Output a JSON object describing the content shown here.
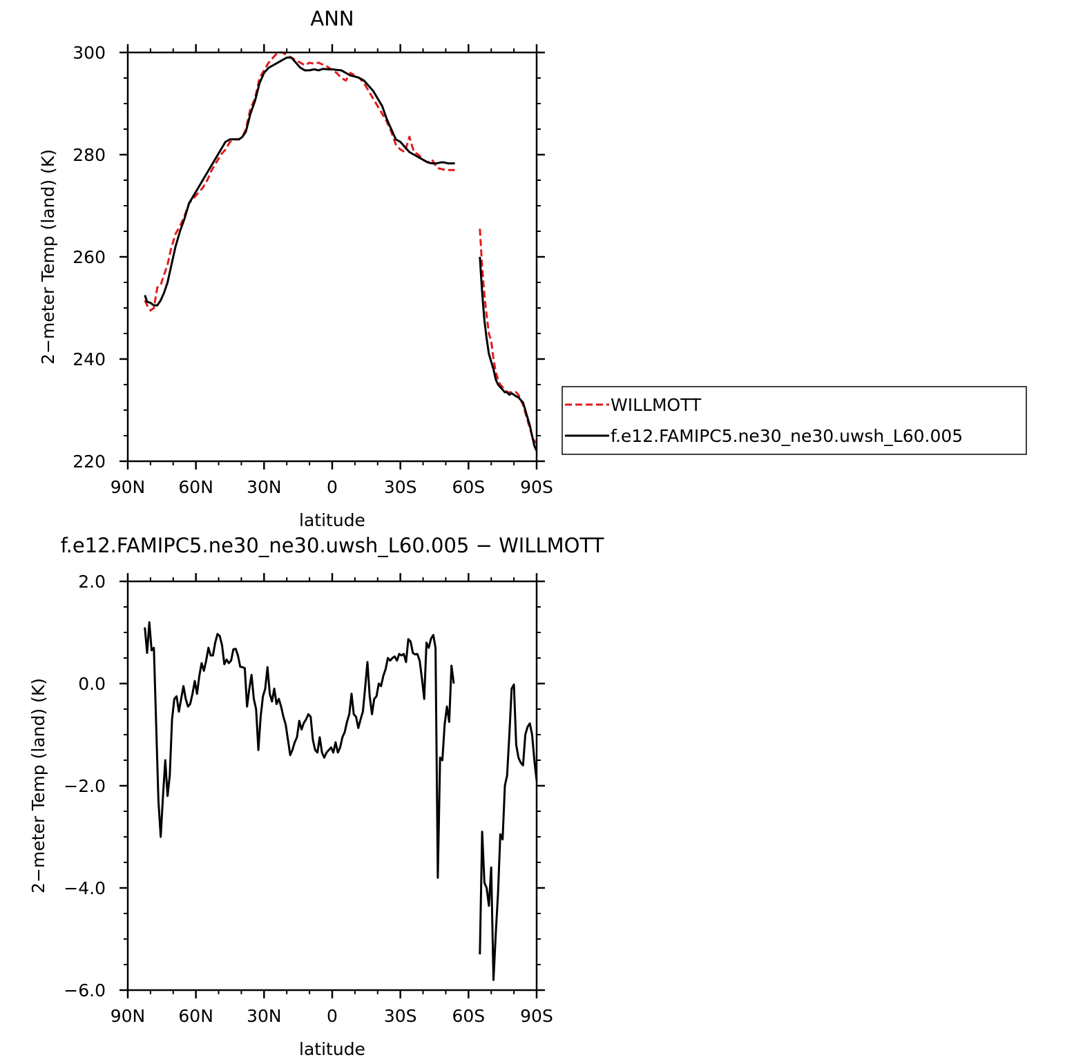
{
  "chart_data": [
    {
      "type": "line",
      "title": "ANN",
      "xlabel": "latitude",
      "ylabel": "2−meter Temp (land) (K)",
      "xlim": [
        90,
        -90
      ],
      "ylim": [
        220,
        300
      ],
      "x_ticks": [
        {
          "value": 90,
          "label": "90N"
        },
        {
          "value": 60,
          "label": "60N"
        },
        {
          "value": 30,
          "label": "30N"
        },
        {
          "value": 0,
          "label": "0"
        },
        {
          "value": -30,
          "label": "30S"
        },
        {
          "value": -60,
          "label": "60S"
        },
        {
          "value": -90,
          "label": "90S"
        }
      ],
      "y_ticks": [
        {
          "value": 300,
          "label": "300"
        },
        {
          "value": 280,
          "label": "280"
        },
        {
          "value": 260,
          "label": "260"
        },
        {
          "value": 240,
          "label": "240"
        },
        {
          "value": 220,
          "label": "220"
        }
      ],
      "legend": {
        "position": "right"
      },
      "series": [
        {
          "name": "WILLMOTT",
          "color": "#e31a1c",
          "dash": "dashed",
          "segments": [
            {
              "x": [
                82.5,
                81.5,
                80,
                78.5,
                77,
                75.5,
                74,
                72.5,
                71,
                69,
                67,
                65,
                63,
                61,
                59,
                57,
                55,
                53,
                51,
                49,
                47,
                45,
                43,
                41,
                39.5,
                38,
                36,
                34,
                32,
                30,
                28,
                26,
                24,
                22,
                20,
                18,
                16,
                14,
                12,
                10,
                8,
                6,
                4,
                2,
                0,
                -2,
                -4,
                -6,
                -8,
                -10,
                -12,
                -14,
                -16,
                -18,
                -20,
                -22,
                -24,
                -26,
                -28,
                -30,
                -32,
                -34,
                -36,
                -38,
                -40,
                -42,
                -44,
                -46,
                -47,
                -48,
                -49,
                -50,
                -51,
                -52,
                -53,
                -54
              ],
              "y": [
                251.5,
                250.5,
                249.5,
                250,
                254,
                254.5,
                256.5,
                258.5,
                261.5,
                264.5,
                266,
                268,
                270.5,
                271.5,
                272.5,
                273.5,
                275,
                277,
                278.5,
                280,
                281,
                282.5,
                283,
                283,
                283.5,
                285,
                289,
                291,
                295,
                296.5,
                298,
                299,
                300,
                300,
                299.5,
                299,
                298.5,
                298,
                297.5,
                298,
                297.8,
                298,
                297.6,
                297.2,
                296.5,
                296,
                295,
                294.5,
                296,
                295.5,
                295,
                294,
                292.5,
                291,
                289.5,
                288,
                286.5,
                284.5,
                282,
                281,
                280.5,
                283.5,
                280.5,
                280,
                279,
                278.5,
                279,
                277.5,
                277.3,
                277.2,
                277.1,
                277,
                277,
                277,
                277,
                277
              ]
            },
            {
              "x": [
                -65,
                -66,
                -67,
                -68,
                -69,
                -70,
                -71,
                -72,
                -73,
                -74,
                -75,
                -76,
                -77,
                -78,
                -79,
                -80,
                -81,
                -82,
                -83,
                -84,
                -85,
                -86,
                -87,
                -88,
                -89,
                -90
              ],
              "y": [
                265.5,
                258,
                252.5,
                248.5,
                245,
                243.5,
                240,
                237.5,
                236,
                235,
                234.5,
                234,
                233.5,
                233.5,
                233.5,
                233.5,
                233.5,
                233,
                232,
                231,
                229.5,
                228,
                226.5,
                225,
                224,
                223.5
              ]
            }
          ]
        },
        {
          "name": "f.e12.FAMIPC5.ne30_ne30.uwsh_L60.005",
          "color": "#000000",
          "dash": "solid",
          "segments": [
            {
              "x": [
                82.5,
                81.5,
                80,
                78.5,
                77,
                75.5,
                74,
                72.5,
                71,
                69,
                67,
                65,
                63,
                61,
                59,
                57,
                55,
                53,
                51,
                49,
                47,
                45,
                43,
                41,
                39.5,
                38,
                36,
                34,
                32,
                30,
                28,
                26,
                24,
                22,
                20,
                18,
                16,
                14,
                12,
                10,
                8,
                6,
                4,
                2,
                0,
                -2,
                -4,
                -6,
                -8,
                -10,
                -12,
                -14,
                -16,
                -18,
                -20,
                -22,
                -24,
                -26,
                -28,
                -30,
                -32,
                -34,
                -36,
                -38,
                -40,
                -42,
                -44,
                -46,
                -47,
                -48,
                -49,
                -50,
                -51,
                -52,
                -53,
                -54
              ],
              "y": [
                252.5,
                251.2,
                251,
                250.5,
                250.5,
                251.5,
                253,
                255,
                258,
                262,
                265,
                267.5,
                270.5,
                272,
                273.5,
                275,
                276.5,
                278,
                279.5,
                281,
                282.5,
                283,
                283,
                283,
                283.5,
                284.5,
                288,
                290.5,
                294,
                296,
                297,
                297.5,
                298,
                298.5,
                299,
                299,
                298,
                297,
                296.5,
                296.5,
                296.7,
                296.5,
                296.8,
                296.7,
                296.7,
                296.6,
                296.5,
                296,
                295.5,
                295.3,
                295,
                294.5,
                293.5,
                292.5,
                291,
                289.5,
                287,
                285,
                283,
                282.5,
                281.5,
                280.5,
                280,
                279.5,
                279,
                278.5,
                278.3,
                278.3,
                278.4,
                278.5,
                278.5,
                278.4,
                278.3,
                278.3,
                278.3,
                278.3
              ]
            },
            {
              "x": [
                -65,
                -66,
                -67,
                -68,
                -69,
                -70,
                -71,
                -72,
                -73,
                -74,
                -75,
                -76,
                -77,
                -78,
                -79,
                -80,
                -81,
                -82,
                -83,
                -84,
                -85,
                -86,
                -87,
                -88,
                -89,
                -90
              ],
              "y": [
                260,
                253,
                247.5,
                244,
                241,
                239.5,
                238,
                236,
                235,
                234.5,
                234,
                233.5,
                233.5,
                233,
                233.3,
                233,
                232.7,
                232.5,
                232,
                231.5,
                230,
                228.5,
                227,
                225,
                223,
                222
              ]
            }
          ]
        }
      ]
    },
    {
      "type": "line",
      "title": "f.e12.FAMIPC5.ne30_ne30.uwsh_L60.005 − WILLMOTT",
      "xlabel": "latitude",
      "ylabel": "2−meter Temp (land) (K)",
      "xlim": [
        90,
        -90
      ],
      "ylim": [
        -6,
        2
      ],
      "x_ticks": [
        {
          "value": 90,
          "label": "90N"
        },
        {
          "value": 60,
          "label": "60N"
        },
        {
          "value": 30,
          "label": "30N"
        },
        {
          "value": 0,
          "label": "0"
        },
        {
          "value": -30,
          "label": "30S"
        },
        {
          "value": -60,
          "label": "60S"
        },
        {
          "value": -90,
          "label": "90S"
        }
      ],
      "y_ticks": [
        {
          "value": 2,
          "label": "2.0"
        },
        {
          "value": 0,
          "label": "0.0"
        },
        {
          "value": -2,
          "label": "−2.0"
        },
        {
          "value": -4,
          "label": "−4.0"
        },
        {
          "value": -6,
          "label": "−6.0"
        }
      ],
      "series": [
        {
          "color": "#000000",
          "dash": "solid",
          "segments": [
            {
              "x": [
                82.5,
                81.5,
                80.5,
                79.5,
                78.5,
                77.5,
                76.5,
                75.5,
                74.5,
                73.5,
                72.5,
                71.5,
                70.5,
                69.5,
                68.5,
                67.5,
                66.5,
                65.5,
                64.5,
                63.5,
                62.5,
                61.5,
                60.5,
                59.5,
                58.5,
                57.5,
                56.5,
                55.5,
                54.5,
                53.5,
                52.5,
                51.5,
                50.5,
                49.5,
                48.5,
                47.5,
                46.5,
                45.5,
                44.5,
                43.5,
                42.5,
                41.5,
                40.5,
                39.5,
                38.5,
                37.5,
                36.5,
                35.5,
                34.5,
                33.5,
                32.5,
                31.5,
                30.5,
                29.5,
                28.5,
                27.5,
                26.5,
                25.5,
                24.5,
                23.5,
                22.5,
                21.5,
                20.5,
                19.5,
                18.5,
                17.5,
                16.5,
                15.5,
                14.5,
                13.5,
                12.5,
                11.5,
                10.5,
                9.5,
                8.5,
                7.5,
                6.5,
                5.5,
                4.5,
                3.5,
                2.5,
                1.5,
                0.5,
                -0.5,
                -1.5,
                -2.5,
                -3.5,
                -4.5,
                -5.5,
                -6.5,
                -7.5,
                -8.5,
                -9.5,
                -10.5,
                -11.5,
                -12.5,
                -13.5,
                -14.5,
                -15.5,
                -16.5,
                -17.5,
                -18.5,
                -19.5,
                -20.5,
                -21.5,
                -22.5,
                -23.5,
                -24.5,
                -25.5,
                -26.5,
                -27.5,
                -28.5,
                -29.5,
                -30.5,
                -31.5,
                -32.5,
                -33.5,
                -34.5,
                -35.5,
                -36.5,
                -37.5,
                -38.5,
                -39.5,
                -40.5,
                -41.5,
                -42.5,
                -43.5,
                -44.5,
                -45.5,
                -46.5,
                -47.5,
                -48.5,
                -49.5,
                -50.5,
                -51.5,
                -52.5,
                -53.5
              ],
              "y": [
                1.1,
                0.6,
                1.2,
                0.65,
                0.7,
                -0.8,
                -2.3,
                -3.0,
                -2.2,
                -1.5,
                -2.2,
                -1.8,
                -0.7,
                -0.3,
                -0.25,
                -0.55,
                -0.3,
                -0.05,
                -0.3,
                -0.45,
                -0.4,
                -0.2,
                0.05,
                -0.2,
                0.15,
                0.4,
                0.25,
                0.45,
                0.7,
                0.55,
                0.55,
                0.8,
                0.97,
                0.93,
                0.75,
                0.38,
                0.47,
                0.4,
                0.45,
                0.67,
                0.68,
                0.55,
                0.33,
                0.32,
                0.3,
                -0.45,
                -0.1,
                0.17,
                -0.3,
                -0.5,
                -1.3,
                -0.65,
                -0.25,
                -0.1,
                0.32,
                -0.2,
                -0.35,
                -0.1,
                -0.4,
                -0.3,
                -0.45,
                -0.65,
                -0.8,
                -1.1,
                -1.4,
                -1.3,
                -1.15,
                -1.05,
                -0.73,
                -0.9,
                -0.77,
                -0.7,
                -0.6,
                -0.65,
                -1.1,
                -1.3,
                -1.35,
                -1.05,
                -1.35,
                -1.45,
                -1.35,
                -1.3,
                -1.25,
                -1.35,
                -1.15,
                -1.35,
                -1.25,
                -1.05,
                -0.95,
                -0.75,
                -0.6,
                -0.2,
                -0.6,
                -0.65,
                -0.87,
                -0.7,
                -0.55,
                -0.08,
                0.42,
                -0.25,
                -0.6,
                -0.3,
                -0.25,
                0.0,
                -0.05,
                0.15,
                0.28,
                0.5,
                0.45,
                0.5,
                0.53,
                0.45,
                0.58,
                0.55,
                0.58,
                0.42,
                0.87,
                0.82,
                0.6,
                0.57,
                0.58,
                0.45,
                0.1,
                -0.3,
                0.8,
                0.7,
                0.88,
                0.95,
                0.7,
                -3.8,
                -1.45,
                -1.5,
                -0.8,
                -0.45,
                -0.75,
                0.35,
                0.0
              ]
            },
            {
              "x": [
                -65,
                -66,
                -67,
                -68,
                -69,
                -70,
                -71,
                -72,
                -73,
                -74,
                -75,
                -76,
                -77,
                -78,
                -79,
                -80,
                -81,
                -82,
                -83,
                -84,
                -85,
                -86,
                -87,
                -88,
                -89,
                -90
              ],
              "y": [
                -5.3,
                -2.9,
                -3.9,
                -4.0,
                -4.35,
                -3.6,
                -5.8,
                -4.9,
                -4.1,
                -2.95,
                -3.05,
                -2.0,
                -1.8,
                -1.0,
                -0.1,
                -0.02,
                -1.2,
                -1.45,
                -1.55,
                -1.6,
                -1.0,
                -0.85,
                -0.78,
                -1.0,
                -1.5,
                -1.9
              ]
            }
          ]
        }
      ]
    }
  ]
}
